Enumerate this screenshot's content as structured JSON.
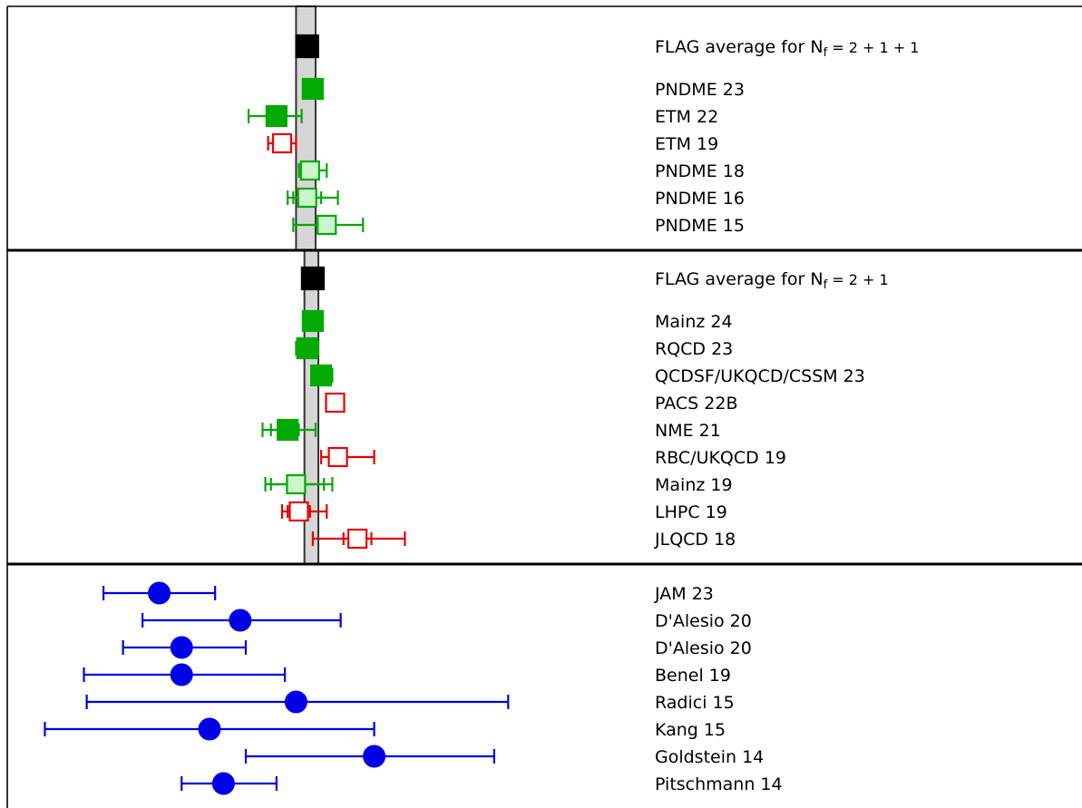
{
  "colors": {
    "green": "#00aa00",
    "light_green": "#ccf5cc",
    "red": "#e60000",
    "blue": "#0000e6",
    "black": "#000000",
    "band": "#d6d6d6"
  },
  "chart_data": {
    "type": "forest",
    "xlim": [
      -0.25,
      1.95
    ],
    "grid": false,
    "x_axis_shown": false,
    "panels": [
      {
        "band": [
          0.71,
          0.78
        ],
        "entries": [
          {
            "label": "FLAG average for N",
            "sub": "f",
            "suffix": " = 2 + 1 + 1",
            "value": 0.75,
            "errors": [
              [
                0.72,
                0.78
              ]
            ],
            "style": "avg"
          },
          {
            "label": "PNDME 23",
            "value": 0.77,
            "errors": [
              [
                0.74,
                0.8
              ],
              [
                0.76,
                0.79
              ]
            ],
            "style": "green"
          },
          {
            "label": "ETM 22",
            "value": 0.64,
            "errors": [
              [
                0.54,
                0.73
              ],
              [
                0.62,
                0.66
              ]
            ],
            "style": "green"
          },
          {
            "label": "ETM 19",
            "value": 0.66,
            "errors": [
              [
                0.61,
                0.71
              ],
              [
                0.64,
                0.69
              ]
            ],
            "style": "red"
          },
          {
            "label": "PNDME 18",
            "value": 0.76,
            "errors": [
              [
                0.72,
                0.82
              ],
              [
                0.74,
                0.78
              ]
            ],
            "style": "lightgreen"
          },
          {
            "label": "PNDME 16",
            "value": 0.75,
            "errors": [
              [
                0.68,
                0.86
              ],
              [
                0.7,
                0.8
              ]
            ],
            "style": "lightgreen"
          },
          {
            "label": "PNDME 15",
            "value": 0.82,
            "errors": [
              [
                0.7,
                0.95
              ]
            ],
            "style": "lightgreen"
          }
        ]
      },
      {
        "band": [
          0.74,
          0.79
        ],
        "entries": [
          {
            "label": "FLAG average for N",
            "sub": "f",
            "suffix": " = 2 + 1",
            "value": 0.77,
            "errors": [],
            "style": "avg"
          },
          {
            "label": "Mainz 24",
            "value": 0.77,
            "errors": [
              [
                0.76,
                0.78
              ]
            ],
            "style": "green"
          },
          {
            "label": "RQCD 23",
            "value": 0.75,
            "errors": [
              [
                0.71,
                0.79
              ],
              [
                0.73,
                0.77
              ]
            ],
            "style": "green"
          },
          {
            "label": "QCDSF/UKQCD/CSSM 23",
            "value": 0.8,
            "errors": [
              [
                0.77,
                0.84
              ],
              [
                0.78,
                0.82
              ]
            ],
            "style": "green"
          },
          {
            "label": "PACS 22B",
            "value": 0.85,
            "errors": [
              [
                0.82,
                0.88
              ],
              [
                0.83,
                0.86
              ]
            ],
            "style": "red"
          },
          {
            "label": "NME 21",
            "value": 0.68,
            "errors": [
              [
                0.59,
                0.78
              ],
              [
                0.62,
                0.72
              ]
            ],
            "style": "green"
          },
          {
            "label": "RBC/UKQCD 19",
            "value": 0.86,
            "errors": [
              [
                0.8,
                0.99
              ],
              [
                0.83,
                0.88
              ]
            ],
            "style": "red"
          },
          {
            "label": "Mainz 19",
            "value": 0.71,
            "errors": [
              [
                0.6,
                0.84
              ],
              [
                0.62,
                0.81
              ]
            ],
            "style": "lightgreen"
          },
          {
            "label": "LHPC 19",
            "value": 0.72,
            "errors": [
              [
                0.66,
                0.82
              ],
              [
                0.68,
                0.76
              ]
            ],
            "style": "red"
          },
          {
            "label": "JLQCD 18",
            "value": 0.93,
            "errors": [
              [
                0.77,
                1.1
              ],
              [
                0.88,
                0.98
              ]
            ],
            "style": "red"
          }
        ]
      },
      {
        "band": null,
        "entries": [
          {
            "label": "JAM 23",
            "value": 0.22,
            "errors": [
              [
                0.02,
                0.42
              ]
            ],
            "style": "blue"
          },
          {
            "label": "D'Alesio 20",
            "value": 0.51,
            "errors": [
              [
                0.16,
                0.87
              ]
            ],
            "style": "blue"
          },
          {
            "label": "D'Alesio 20",
            "value": 0.3,
            "errors": [
              [
                0.09,
                0.53
              ]
            ],
            "style": "blue"
          },
          {
            "label": "Benel 19",
            "value": 0.3,
            "errors": [
              [
                -0.05,
                0.67
              ]
            ],
            "style": "blue"
          },
          {
            "label": "Radici 15",
            "value": 0.71,
            "errors": [
              [
                -0.04,
                1.47
              ]
            ],
            "style": "blue"
          },
          {
            "label": "Kang 15",
            "value": 0.4,
            "errors": [
              [
                -0.19,
                0.99
              ]
            ],
            "style": "blue"
          },
          {
            "label": "Goldstein 14",
            "value": 0.99,
            "errors": [
              [
                0.53,
                1.42
              ]
            ],
            "style": "blue"
          },
          {
            "label": "Pitschmann 14",
            "value": 0.45,
            "errors": [
              [
                0.3,
                0.64
              ]
            ],
            "style": "blue"
          }
        ]
      }
    ]
  }
}
